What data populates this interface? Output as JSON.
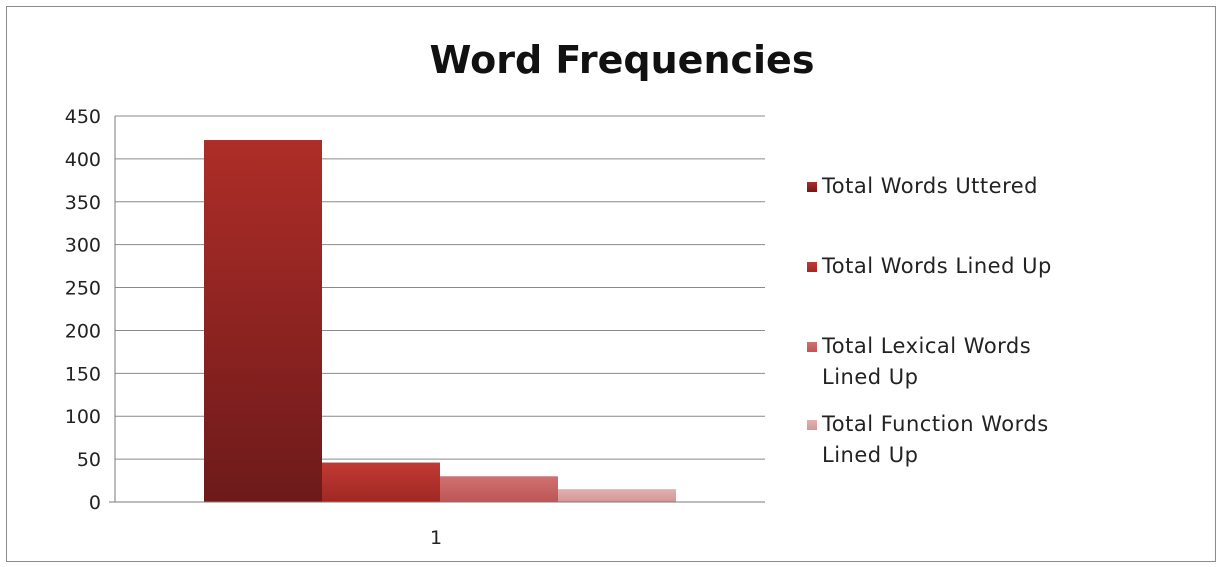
{
  "chart_data": {
    "type": "bar",
    "title": "Word Frequencies",
    "xlabel": "",
    "ylabel": "",
    "categories": [
      "1"
    ],
    "ylim": [
      0,
      450
    ],
    "yticks": [
      0,
      50,
      100,
      150,
      200,
      250,
      300,
      350,
      400,
      450
    ],
    "grid": true,
    "legend_position": "right",
    "series": [
      {
        "name": "Total Words Uttered",
        "values": [
          422
        ],
        "color": "#8b2020"
      },
      {
        "name": "Total Words Lined Up",
        "values": [
          46
        ],
        "color": "#b02e2a"
      },
      {
        "name": "Total Lexical Words Lined Up",
        "values": [
          30
        ],
        "color": "#c86262"
      },
      {
        "name": "Total Function Words Lined Up",
        "values": [
          15
        ],
        "color": "#d9a0a0"
      }
    ]
  }
}
